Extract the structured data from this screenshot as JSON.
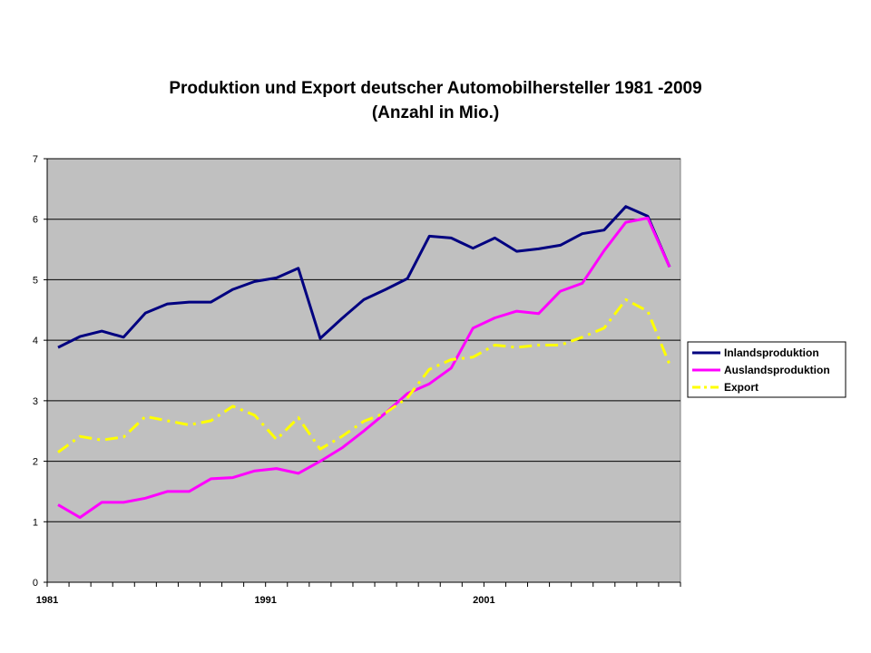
{
  "chart_data": {
    "type": "line",
    "title": "Produktion und Export deutscher Automobilhersteller 1981 -2009",
    "subtitle": "(Anzahl in Mio.)",
    "xlabel": "",
    "ylabel": "",
    "x": [
      1981,
      1982,
      1983,
      1984,
      1985,
      1986,
      1987,
      1988,
      1989,
      1990,
      1991,
      1992,
      1993,
      1994,
      1995,
      1996,
      1997,
      1998,
      1999,
      2000,
      2001,
      2002,
      2003,
      2004,
      2005,
      2006,
      2007,
      2008,
      2009
    ],
    "x_tick_labels": [
      "1981",
      "1991",
      "2001"
    ],
    "y_tick_labels": [
      "0",
      "1",
      "2",
      "3",
      "4",
      "5",
      "6",
      "7"
    ],
    "ylim": [
      0,
      7
    ],
    "grid": "horizontal",
    "plot_background": "#c0c0c0",
    "legend_position": "right",
    "series": [
      {
        "name": "Inlandsproduktion",
        "color": "#000080",
        "style": "solid",
        "values": [
          3.88,
          4.06,
          4.15,
          4.05,
          4.45,
          4.6,
          4.63,
          4.63,
          4.84,
          4.97,
          5.03,
          5.19,
          4.03,
          4.36,
          4.67,
          4.84,
          5.02,
          5.72,
          5.69,
          5.52,
          5.69,
          5.47,
          5.51,
          5.57,
          5.76,
          5.82,
          6.21,
          6.05,
          5.21
        ]
      },
      {
        "name": "Auslandsproduktion",
        "color": "#ff00ff",
        "style": "solid",
        "values": [
          1.28,
          1.07,
          1.32,
          1.32,
          1.39,
          1.5,
          1.5,
          1.71,
          1.73,
          1.84,
          1.88,
          1.8,
          2.0,
          2.22,
          2.5,
          2.8,
          3.12,
          3.28,
          3.54,
          4.2,
          4.37,
          4.48,
          4.44,
          4.81,
          4.94,
          5.48,
          5.95,
          6.02,
          5.21
        ]
      },
      {
        "name": "Export",
        "color": "#ffff00",
        "style": "dash-dot",
        "values": [
          2.15,
          2.41,
          2.35,
          2.4,
          2.74,
          2.67,
          2.6,
          2.67,
          2.91,
          2.76,
          2.36,
          2.72,
          2.2,
          2.41,
          2.66,
          2.8,
          3.05,
          3.52,
          3.68,
          3.72,
          3.92,
          3.88,
          3.92,
          3.92,
          4.05,
          4.2,
          4.67,
          4.48,
          3.6
        ]
      }
    ]
  }
}
